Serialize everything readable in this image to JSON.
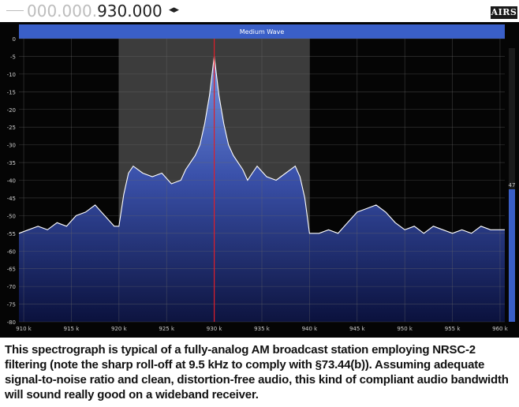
{
  "header": {
    "frequency_prefix": "000.000.",
    "frequency_main": "930.000",
    "arrows": "◂▸",
    "logo_text": "AIRS"
  },
  "band": {
    "label": "Medium Wave",
    "color": "#3a5fc8"
  },
  "signal_meter": {
    "label": "47"
  },
  "colors": {
    "background": "#050505",
    "passband": "#3c3c3c",
    "center_line": "#e01e2a",
    "trace": "#ffffff",
    "fill_top": "#7a9ae8",
    "fill_bottom": "#0b1240"
  },
  "chart_data": {
    "type": "area",
    "title": "",
    "xlabel": "",
    "ylabel": "",
    "x_unit": "kHz",
    "xlim": [
      909.5,
      960.5
    ],
    "ylim": [
      -80,
      0
    ],
    "x_ticks": [
      "910 k",
      "915 k",
      "920 k",
      "925 k",
      "930 k",
      "935 k",
      "940 k",
      "945 k",
      "950 k",
      "955 k",
      "960 k"
    ],
    "y_ticks": [
      "0",
      "-5",
      "-10",
      "-15",
      "-20",
      "-25",
      "-30",
      "-35",
      "-40",
      "-45",
      "-50",
      "-55",
      "-60",
      "-65",
      "-70",
      "-75",
      "-80"
    ],
    "passband": [
      920,
      940
    ],
    "center_khz": 930,
    "series": [
      {
        "points": [
          [
            909.5,
            -55
          ],
          [
            910.5,
            -54
          ],
          [
            911.5,
            -53
          ],
          [
            912.5,
            -54
          ],
          [
            913.5,
            -52
          ],
          [
            914.5,
            -53
          ],
          [
            915.5,
            -50
          ],
          [
            916.5,
            -49
          ],
          [
            917.5,
            -47
          ],
          [
            918.5,
            -50
          ],
          [
            919.5,
            -53
          ],
          [
            920.0,
            -53
          ],
          [
            920.5,
            -44
          ],
          [
            921.0,
            -38
          ],
          [
            921.5,
            -36
          ],
          [
            922.5,
            -38
          ],
          [
            923.5,
            -39
          ],
          [
            924.5,
            -38
          ],
          [
            925.5,
            -41
          ],
          [
            926.5,
            -40
          ],
          [
            927.0,
            -37
          ],
          [
            927.5,
            -35
          ],
          [
            928.0,
            -33
          ],
          [
            928.5,
            -30
          ],
          [
            929.0,
            -24
          ],
          [
            929.5,
            -16
          ],
          [
            930.0,
            -5
          ],
          [
            930.5,
            -16
          ],
          [
            931.0,
            -24
          ],
          [
            931.5,
            -30
          ],
          [
            932.0,
            -33
          ],
          [
            932.5,
            -35
          ],
          [
            933.0,
            -37
          ],
          [
            933.5,
            -40
          ],
          [
            934.0,
            -38
          ],
          [
            934.5,
            -36
          ],
          [
            935.5,
            -39
          ],
          [
            936.5,
            -40
          ],
          [
            937.5,
            -38
          ],
          [
            938.5,
            -36
          ],
          [
            939.0,
            -39
          ],
          [
            939.5,
            -45
          ],
          [
            940.0,
            -55
          ],
          [
            941.0,
            -55
          ],
          [
            942.0,
            -54
          ],
          [
            943.0,
            -55
          ],
          [
            944.0,
            -52
          ],
          [
            945.0,
            -49
          ],
          [
            946.0,
            -48
          ],
          [
            947.0,
            -47
          ],
          [
            948.0,
            -49
          ],
          [
            949.0,
            -52
          ],
          [
            950.0,
            -54
          ],
          [
            951.0,
            -53
          ],
          [
            952.0,
            -55
          ],
          [
            953.0,
            -53
          ],
          [
            954.0,
            -54
          ],
          [
            955.0,
            -55
          ],
          [
            956.0,
            -54
          ],
          [
            957.0,
            -55
          ],
          [
            958.0,
            -53
          ],
          [
            959.0,
            -54
          ],
          [
            960.5,
            -54
          ]
        ]
      }
    ]
  },
  "caption": "This spectrograph is typical of a fully-analog AM broadcast station employing NRSC-2 filtering (note the sharp roll-off at 9.5 kHz to comply with §73.44(b)). Assuming adequate signal-to-noise ratio and clean, distortion-free audio, this kind of compliant audio bandwidth will sound really good on a wideband receiver."
}
